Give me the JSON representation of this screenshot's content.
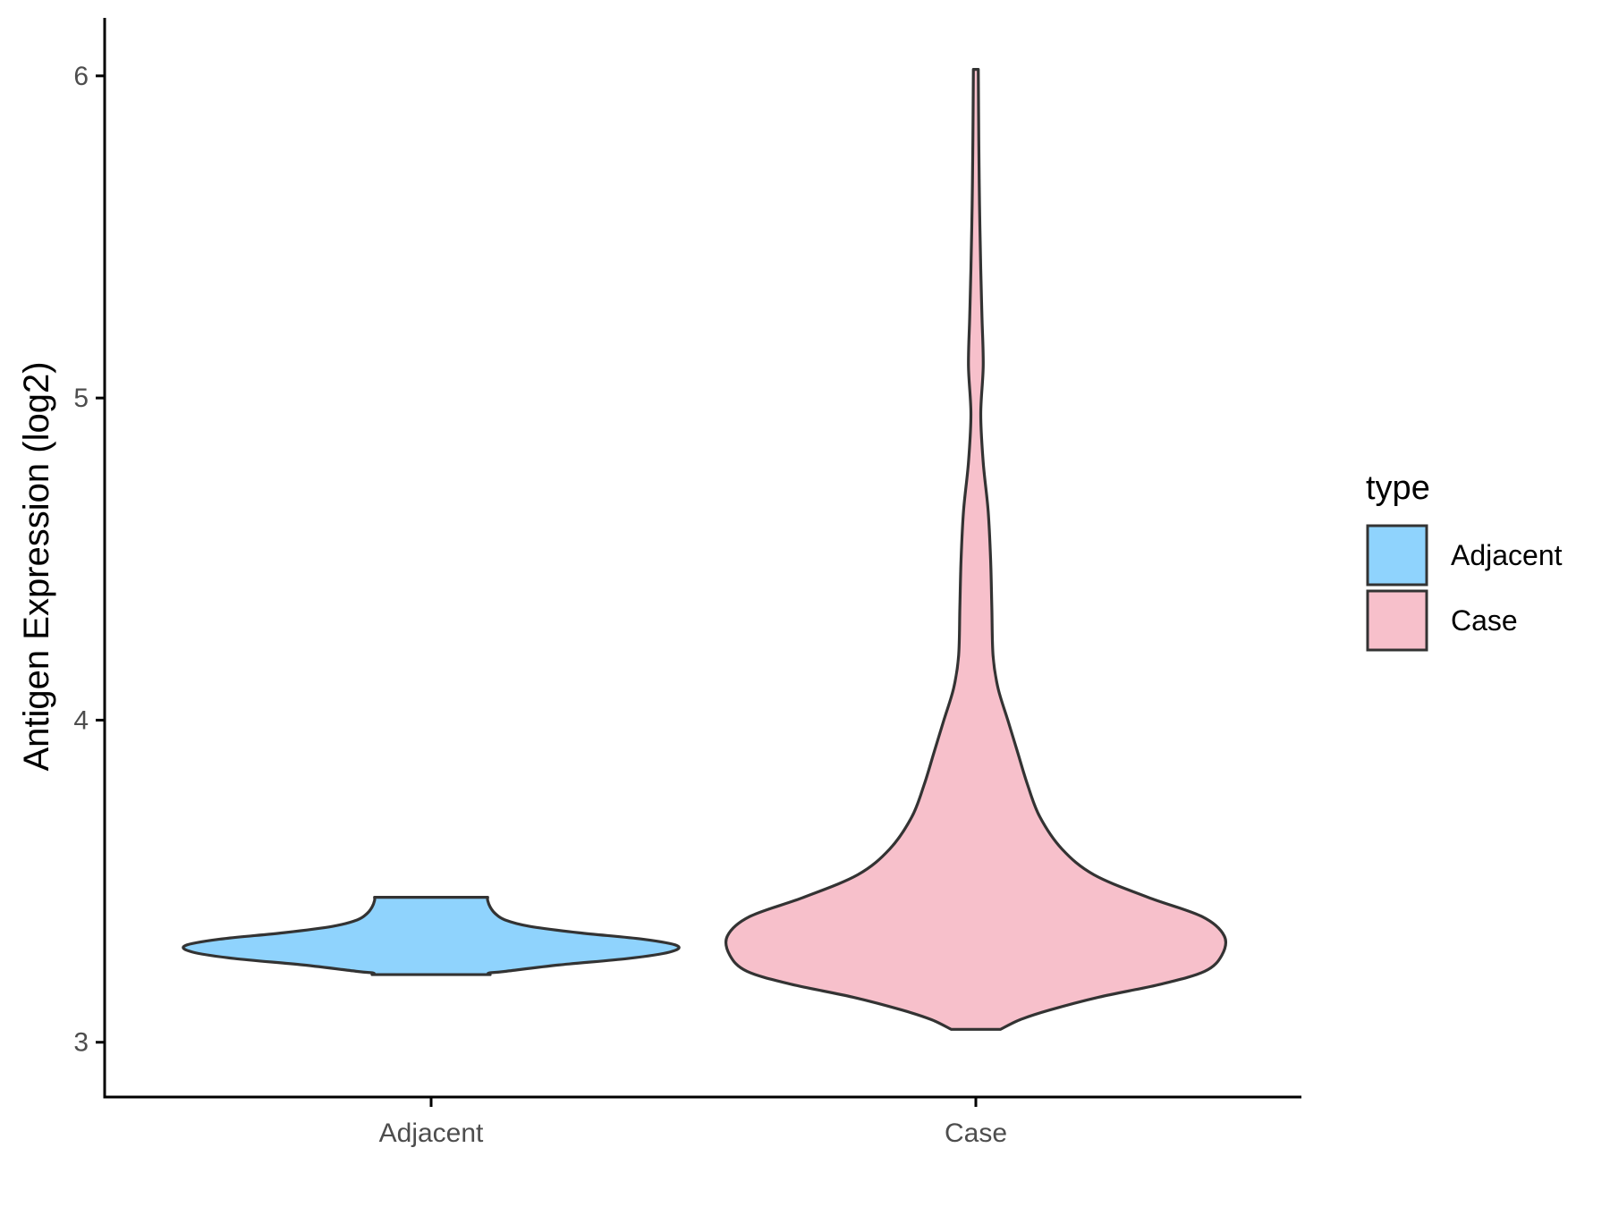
{
  "chart_data": {
    "type": "violin",
    "title": "",
    "xlabel": "",
    "ylabel": "Antigen Expression (log2)",
    "ylim": [
      2.83,
      6.18
    ],
    "yticks": [
      3,
      4,
      5,
      6
    ],
    "categories": [
      "Adjacent",
      "Case"
    ],
    "legend": {
      "title": "type",
      "position": "right",
      "entries": [
        {
          "label": "Adjacent",
          "color": "#8fd3fd"
        },
        {
          "label": "Case",
          "color": "#f7c0cb"
        }
      ]
    },
    "grid": false,
    "series": [
      {
        "category": "Adjacent",
        "color": "#8fd3fd",
        "min": 3.21,
        "max": 3.45,
        "density": [
          [
            3.21,
            0.24
          ],
          [
            3.215,
            0.235
          ],
          [
            3.22,
            0.3
          ],
          [
            3.24,
            0.52
          ],
          [
            3.26,
            0.8
          ],
          [
            3.28,
            0.97
          ],
          [
            3.3,
            1.0
          ],
          [
            3.32,
            0.86
          ],
          [
            3.34,
            0.6
          ],
          [
            3.36,
            0.4
          ],
          [
            3.38,
            0.3
          ],
          [
            3.4,
            0.26
          ],
          [
            3.42,
            0.24
          ],
          [
            3.44,
            0.23
          ],
          [
            3.45,
            0.23
          ]
        ]
      },
      {
        "category": "Case",
        "color": "#f7c0cb",
        "min": 3.04,
        "max": 6.02,
        "density": [
          [
            3.04,
            0.1
          ],
          [
            3.07,
            0.18
          ],
          [
            3.1,
            0.3
          ],
          [
            3.14,
            0.5
          ],
          [
            3.18,
            0.75
          ],
          [
            3.22,
            0.93
          ],
          [
            3.27,
            1.0
          ],
          [
            3.33,
            1.01
          ],
          [
            3.39,
            0.92
          ],
          [
            3.45,
            0.7
          ],
          [
            3.52,
            0.48
          ],
          [
            3.6,
            0.35
          ],
          [
            3.7,
            0.26
          ],
          [
            3.8,
            0.21
          ],
          [
            3.9,
            0.17
          ],
          [
            4.0,
            0.13
          ],
          [
            4.1,
            0.09
          ],
          [
            4.2,
            0.07
          ],
          [
            4.35,
            0.065
          ],
          [
            4.5,
            0.06
          ],
          [
            4.65,
            0.05
          ],
          [
            4.8,
            0.03
          ],
          [
            4.95,
            0.02
          ],
          [
            5.1,
            0.03
          ],
          [
            5.25,
            0.025
          ],
          [
            5.4,
            0.02
          ],
          [
            5.6,
            0.015
          ],
          [
            5.8,
            0.012
          ],
          [
            6.02,
            0.01
          ]
        ]
      }
    ]
  }
}
